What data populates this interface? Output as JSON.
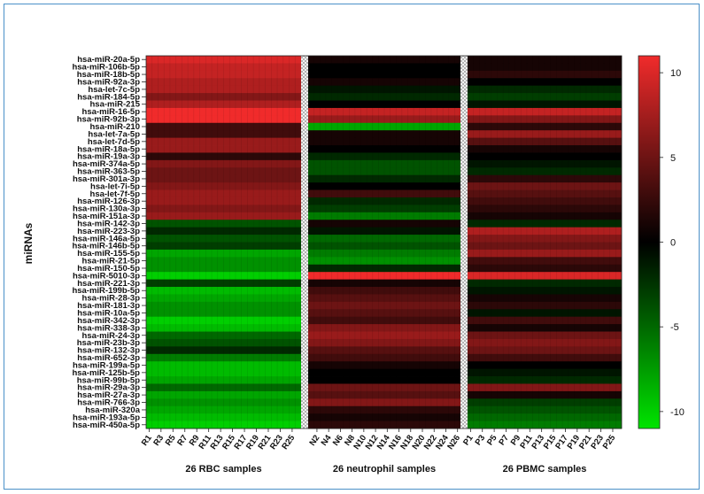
{
  "chart_data": {
    "type": "heatmap",
    "ylabel": "miRNAs",
    "rows": [
      "hsa-miR-20a-5p",
      "hsa-miR-106b-5p",
      "hsa-miR-18b-5p",
      "hsa-miR-92a-3p",
      "hsa-let-7c-5p",
      "hsa-miR-184-5p",
      "hsa-miR-215",
      "hsa-miR-16-5p",
      "hsa-miR-92b-3p",
      "hsa-miR-210",
      "hsa-let-7a-5p",
      "hsa-let-7d-5p",
      "hsa-miR-18a-5p",
      "hsa-miR-19a-3p",
      "hsa-miR-374a-5p",
      "hsa-miR-363-5p",
      "hsa-miR-301a-3p",
      "hsa-let-7i-5p",
      "hsa-let-7f-5p",
      "hsa-miR-126-3p",
      "hsa-miR-130a-3p",
      "hsa-miR-151a-3p",
      "hsa-miR-142-3p",
      "hsa-miR-223-3p",
      "hsa-miR-146a-5p",
      "hsa-miR-146b-5p",
      "hsa-miR-155-5p",
      "hsa-miR-21-5p",
      "hsa-miR-150-5p",
      "hsa-miR-5010-3p",
      "hsa-miR-221-3p",
      "hsa-miR-199b-5p",
      "hsa-miR-28-3p",
      "hsa-miR-181-3p",
      "hsa-miR-10a-5p",
      "hsa-miR-342-3p",
      "hsa-miR-338-3p",
      "hsa-miR-24-3p",
      "hsa-miR-23b-3p",
      "hsa-miR-132-3p",
      "hsa-miR-652-3p",
      "hsa-miR-199a-5p",
      "hsa-miR-125b-5p",
      "hsa-miR-99b-5p",
      "hsa-miR-29a-3p",
      "hsa-miR-27a-3p",
      "hsa-miR-766-3p",
      "hsa-miR-320a",
      "hsa-miR-193a-5p",
      "hsa-miR-450a-5p"
    ],
    "groups": [
      {
        "label": "26 RBC samples",
        "tick_labels": [
          "R1",
          "R3",
          "R5",
          "R7",
          "R9",
          "R11",
          "R13",
          "R15",
          "R17",
          "R19",
          "R21",
          "R23",
          "R25"
        ],
        "values": [
          10,
          9,
          9,
          8,
          8,
          6,
          8,
          11,
          11,
          3,
          3,
          7,
          7,
          2,
          6,
          5,
          5,
          6,
          7,
          7,
          6,
          7,
          -4,
          -2,
          -4,
          -3,
          -8,
          -7,
          -7,
          -10,
          -3,
          -9,
          -8,
          -7,
          -7,
          -10,
          -9,
          -5,
          -4,
          -2,
          -6,
          -9,
          -9,
          -8,
          -5,
          -8,
          -7,
          -8,
          -9,
          -10
        ]
      },
      {
        "label": "26 neutrophil samples",
        "tick_labels": [
          "N2",
          "N4",
          "N6",
          "N8",
          "N10",
          "N12",
          "N14",
          "N16",
          "N18",
          "N20",
          "N22",
          "N24",
          "N26"
        ],
        "values": [
          1,
          0,
          0,
          1,
          -1,
          -2,
          0,
          9,
          7,
          -8,
          1,
          1,
          0,
          -2,
          -4,
          -4,
          -2,
          0,
          3,
          -2,
          -3,
          -6,
          1,
          -1,
          -5,
          -4,
          -6,
          -7,
          -2,
          11,
          1,
          3,
          4,
          5,
          4,
          3,
          6,
          7,
          6,
          4,
          3,
          1,
          0,
          0,
          5,
          4,
          6,
          2,
          1,
          2
        ]
      },
      {
        "label": "26 PBMC samples",
        "tick_labels": [
          "P1",
          "P3",
          "P5",
          "P7",
          "P9",
          "P11",
          "P13",
          "P15",
          "P17",
          "P19",
          "P21",
          "P23",
          "P25"
        ],
        "values": [
          1,
          1,
          2,
          0,
          -2,
          -3,
          -1,
          9,
          6,
          2,
          7,
          4,
          1,
          0,
          -1,
          -2,
          2,
          5,
          4,
          3,
          2,
          1,
          -2,
          8,
          6,
          5,
          7,
          3,
          2,
          10,
          -2,
          -1,
          1,
          2,
          -1,
          3,
          1,
          5,
          6,
          5,
          3,
          0,
          -1,
          -2,
          6,
          1,
          -3,
          -4,
          -5,
          -6
        ]
      }
    ],
    "colorbar": {
      "min": -11,
      "max": 11,
      "ticks": [
        "10",
        "5",
        "0",
        "-5",
        "-10"
      ],
      "low_color": "#00e400",
      "mid_color": "#000000",
      "high_color": "#f02b2b"
    }
  }
}
